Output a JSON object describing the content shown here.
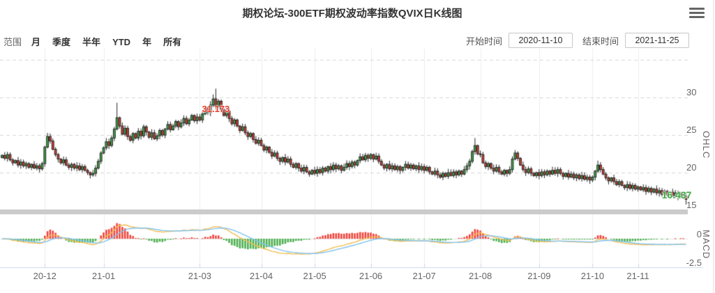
{
  "toolbar": {
    "range_label": "范围",
    "range_buttons": [
      "月",
      "季度",
      "半年",
      "YTD",
      "年",
      "所有"
    ],
    "start_label": "开始时间",
    "start_value": "2020-11-10",
    "end_label": "结束时间",
    "end_value": "2021-11-25"
  },
  "icons": {
    "menu": "hamburger-menu"
  },
  "chart_data": {
    "type": "candlestick",
    "title": "期权论坛-300ETF期权波动率指数QVIX日K线图",
    "price_axis": {
      "label": "OHLC",
      "ticks": [
        30,
        25,
        20,
        15
      ],
      "gridlines": [
        35,
        30,
        25,
        20,
        15
      ],
      "grid_dashed": true,
      "range_top": 36,
      "range_bottom": 15
    },
    "macd_axis": {
      "label": "MACD",
      "ticks": [
        {
          "label": "0",
          "value": 0
        },
        {
          "label": "-2.5",
          "value": -2.5
        }
      ]
    },
    "macd_params": {
      "fast": 12,
      "slow": 26,
      "signal": 9,
      "histogram_scale": 2
    },
    "x_ticks": [
      {
        "label": "20-12",
        "index": 16
      },
      {
        "label": "21-01",
        "index": 38
      },
      {
        "label": "21-03",
        "index": 74
      },
      {
        "label": "21-04",
        "index": 97
      },
      {
        "label": "21-05",
        "index": 117
      },
      {
        "label": "21-06",
        "index": 138
      },
      {
        "label": "21-07",
        "index": 158
      },
      {
        "label": "21-08",
        "index": 179
      },
      {
        "label": "21-09",
        "index": 201
      },
      {
        "label": "21-10",
        "index": 221
      },
      {
        "label": "21-11",
        "index": 238
      }
    ],
    "annotations": {
      "peak": {
        "text": "31.173",
        "index": 80,
        "value": 31.173,
        "color": "#ea3c2e"
      },
      "last": {
        "text": "16.437",
        "index": 256,
        "value": 16.437,
        "color": "#3fa843"
      }
    },
    "first_open": 22.0,
    "open_rule": "previous_close",
    "closes": [
      22.3,
      21.9,
      22.4,
      21.7,
      21.3,
      21.6,
      21.0,
      21.4,
      20.9,
      21.2,
      20.7,
      21.1,
      20.6,
      20.9,
      20.5,
      21.2,
      23.4,
      24.8,
      24.2,
      23.1,
      22.4,
      21.8,
      21.3,
      21.7,
      21.0,
      20.7,
      21.1,
      20.6,
      20.9,
      20.4,
      20.8,
      20.3,
      20.0,
      19.7,
      19.9,
      20.6,
      21.5,
      22.6,
      23.3,
      24.1,
      23.6,
      24.6,
      25.8,
      27.3,
      26.2,
      25.1,
      25.9,
      24.8,
      24.3,
      25.2,
      24.6,
      25.5,
      24.9,
      26.1,
      25.4,
      24.7,
      25.3,
      24.5,
      24.9,
      25.6,
      25.0,
      25.8,
      26.4,
      25.7,
      26.2,
      26.8,
      26.1,
      26.6,
      27.2,
      26.5,
      27.0,
      27.6,
      26.9,
      27.4,
      27.0,
      27.8,
      28.6,
      28.0,
      29.0,
      29.8,
      28.8,
      29.5,
      28.4,
      27.6,
      28.2,
      27.2,
      26.5,
      27.0,
      26.2,
      25.6,
      26.1,
      25.3,
      24.8,
      25.2,
      24.4,
      23.9,
      24.3,
      23.6,
      23.0,
      23.4,
      22.7,
      22.2,
      22.6,
      21.9,
      21.5,
      22.0,
      21.4,
      21.8,
      21.1,
      20.7,
      21.2,
      20.6,
      20.2,
      20.7,
      20.1,
      19.8,
      20.3,
      19.9,
      20.4,
      20.0,
      20.6,
      20.2,
      20.8,
      20.4,
      21.0,
      20.5,
      20.9,
      20.3,
      20.7,
      21.2,
      20.8,
      21.4,
      21.0,
      21.6,
      22.1,
      21.7,
      22.3,
      21.9,
      22.4,
      21.8,
      22.2,
      21.5,
      21.0,
      20.6,
      21.1,
      20.5,
      20.9,
      20.4,
      20.8,
      20.3,
      20.7,
      21.1,
      20.6,
      21.0,
      20.5,
      20.9,
      20.4,
      20.8,
      20.3,
      20.7,
      20.1,
      19.8,
      20.2,
      19.7,
      19.4,
      19.9,
      19.5,
      20.0,
      19.6,
      20.1,
      19.7,
      20.2,
      19.8,
      20.4,
      20.9,
      21.5,
      22.8,
      23.6,
      22.5,
      22.4,
      21.3,
      20.8,
      21.2,
      20.6,
      20.2,
      20.7,
      20.1,
      19.8,
      20.3,
      19.9,
      20.4,
      21.8,
      22.6,
      21.9,
      21.0,
      20.4,
      20.0,
      20.5,
      19.9,
      19.6,
      20.0,
      19.6,
      20.1,
      19.7,
      20.2,
      19.8,
      20.3,
      19.9,
      20.4,
      19.9,
      19.5,
      19.9,
      19.4,
      19.8,
      19.3,
      19.7,
      19.2,
      19.6,
      19.1,
      19.4,
      19.0,
      19.4,
      20.2,
      21.0,
      20.4,
      19.8,
      19.3,
      18.9,
      19.3,
      18.8,
      18.4,
      18.8,
      18.3,
      18.0,
      18.4,
      17.9,
      18.3,
      17.8,
      18.1,
      17.7,
      18.0,
      17.5,
      17.9,
      17.4,
      17.8,
      17.3,
      17.6,
      17.1,
      17.5,
      17.0,
      17.4,
      16.9,
      17.3,
      16.8,
      17.2,
      16.9,
      16.437
    ],
    "overrides": {
      "43": {
        "high": 29.3
      },
      "79": {
        "high": 30.4
      },
      "80": {
        "high": 31.173
      },
      "177": {
        "high": 24.6
      },
      "192": {
        "high": 23.0
      },
      "223": {
        "high": 21.6
      },
      "256": {
        "low": 15.75
      }
    },
    "colors": {
      "up": "#3ca845",
      "down": "#dc3b30",
      "candle_border": "#242424",
      "macd_positive": "#f0453c",
      "macd_negative": "#4caf50",
      "dif_line": "#f3bd50",
      "dea_line": "#7fc3f0",
      "grid_dash": "#d6d6d6",
      "grid_vertical": "#ededed",
      "axis_line": "#ccd6eb",
      "scrollbar": "#cbcbcb",
      "axis_text": "#666666"
    }
  }
}
